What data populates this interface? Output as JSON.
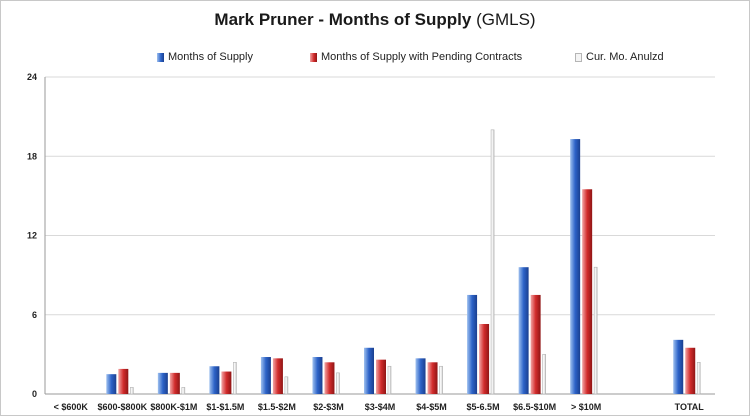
{
  "chart_data": {
    "type": "bar",
    "title": "Mark Pruner - Months of Supply",
    "subtitle": "(GMLS)",
    "categories": [
      "< $600K",
      "$600-$800K",
      "$800K-$1M",
      "$1-$1.5M",
      "$1.5-$2M",
      "$2-$3M",
      "$3-$4M",
      "$4-$5M",
      "$5-6.5M",
      "$6.5-$10M",
      "> $10M",
      "",
      "TOTAL"
    ],
    "series": [
      {
        "name": "Months of Supply",
        "color": "#2d63c8",
        "values": [
          0,
          1.5,
          1.6,
          2.1,
          2.8,
          2.8,
          3.5,
          2.7,
          7.5,
          9.6,
          19.3,
          null,
          4.1
        ]
      },
      {
        "name": "Months of Supply with Pending Contracts",
        "color": "#d22c2c",
        "values": [
          0,
          1.9,
          1.6,
          1.7,
          2.7,
          2.4,
          2.6,
          2.4,
          5.3,
          7.5,
          15.5,
          null,
          3.5
        ]
      },
      {
        "name": "Cur. Mo. Anulzd",
        "color": "#f2f2f2",
        "values": [
          0,
          0.5,
          0.5,
          2.4,
          1.3,
          1.6,
          2.1,
          2.1,
          20.0,
          3.0,
          9.6,
          null,
          2.4
        ]
      }
    ],
    "yticks": [
      0,
      6,
      12,
      18,
      24
    ],
    "ylim": [
      0,
      24
    ],
    "grid": true,
    "legend_position": "top"
  }
}
